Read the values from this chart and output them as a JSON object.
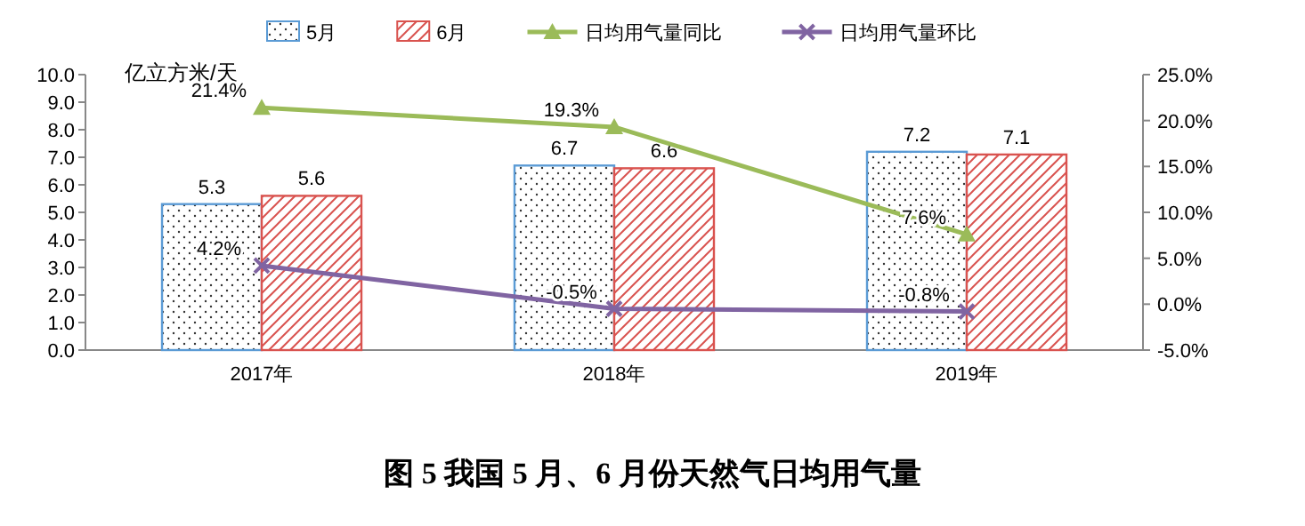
{
  "chart_data": {
    "type": "bar",
    "title": "图 5 我国 5 月、6 月份天然气日均用气量",
    "ylabel": "亿立方米/天",
    "categories": [
      "2017年",
      "2018年",
      "2019年"
    ],
    "series": [
      {
        "name": "5月",
        "color": "#5b9bd5",
        "values": [
          5.3,
          6.7,
          7.2
        ]
      },
      {
        "name": "6月",
        "color": "#d9534f",
        "values": [
          5.6,
          6.6,
          7.1
        ]
      },
      {
        "name": "日均用气量同比",
        "type": "line",
        "axis": "y2",
        "marker": "triangle",
        "color": "#9bbb59",
        "values": [
          21.4,
          19.3,
          7.6
        ],
        "value_labels": [
          "21.4%",
          "19.3%",
          "7.6%"
        ]
      },
      {
        "name": "日均用气量环比",
        "type": "line",
        "axis": "y2",
        "marker": "cross",
        "color": "#8064a2",
        "values": [
          4.2,
          -0.5,
          -0.8
        ],
        "value_labels": [
          "4.2%",
          "-0.5%",
          "-0.8%"
        ]
      }
    ],
    "data_labels": true,
    "grid": false,
    "legend": "top",
    "ylim": [
      0,
      10
    ],
    "yticks": [
      {
        "value": 0,
        "label": "0.0"
      },
      {
        "value": 1,
        "label": "1.0"
      },
      {
        "value": 2,
        "label": "2.0"
      },
      {
        "value": 3,
        "label": "3.0"
      },
      {
        "value": 4,
        "label": "4.0"
      },
      {
        "value": 5,
        "label": "5.0"
      },
      {
        "value": 6,
        "label": "6.0"
      },
      {
        "value": 7,
        "label": "7.0"
      },
      {
        "value": 8,
        "label": "8.0"
      },
      {
        "value": 9,
        "label": "9.0"
      },
      {
        "value": 10,
        "label": "10.0"
      }
    ],
    "y2lim": [
      -5,
      25
    ],
    "y2ticks": [
      {
        "value": -5,
        "label": "-5.0%"
      },
      {
        "value": 0,
        "label": "0.0%"
      },
      {
        "value": 5,
        "label": "5.0%"
      },
      {
        "value": 10,
        "label": "10.0%"
      },
      {
        "value": 15,
        "label": "15.0%"
      },
      {
        "value": 20,
        "label": "20.0%"
      },
      {
        "value": 25,
        "label": "25.0%"
      }
    ]
  }
}
